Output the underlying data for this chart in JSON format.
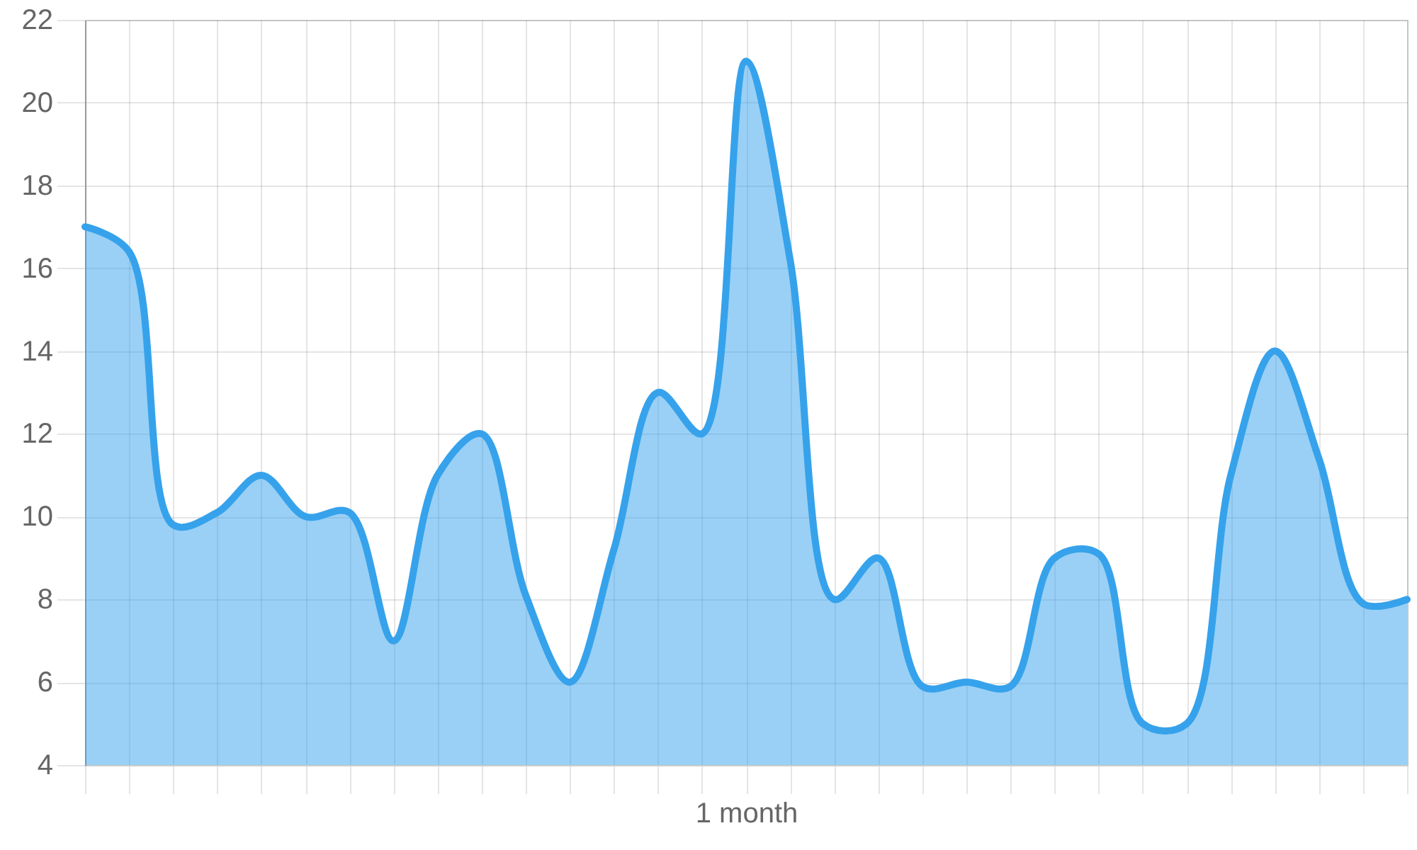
{
  "chart_data": {
    "type": "area",
    "categories": [
      null,
      null,
      null,
      null,
      null,
      null,
      null,
      null,
      null,
      null,
      null,
      null,
      null,
      null,
      null,
      "1 month",
      null,
      null,
      null,
      null,
      null,
      null,
      null,
      null,
      null,
      null,
      null,
      null,
      null,
      null,
      null
    ],
    "series": [
      {
        "color": "#36a2eb",
        "values": [
          17.0,
          16.4,
          9.8,
          10.1,
          11.0,
          10.0,
          10.1,
          7.0,
          11.0,
          12.0,
          8.1,
          6.0,
          9.2,
          13.0,
          12.0,
          21.0,
          16.2,
          8.0,
          9.0,
          5.9,
          6.0,
          5.9,
          9.0,
          9.1,
          5.0,
          5.0,
          11.0,
          14.0,
          11.4,
          7.9,
          8.0
        ]
      }
    ],
    "ylim": [
      4,
      22
    ],
    "yticks": [
      4,
      6,
      8,
      10,
      12,
      14,
      16,
      18,
      20,
      22
    ],
    "grid": true
  }
}
